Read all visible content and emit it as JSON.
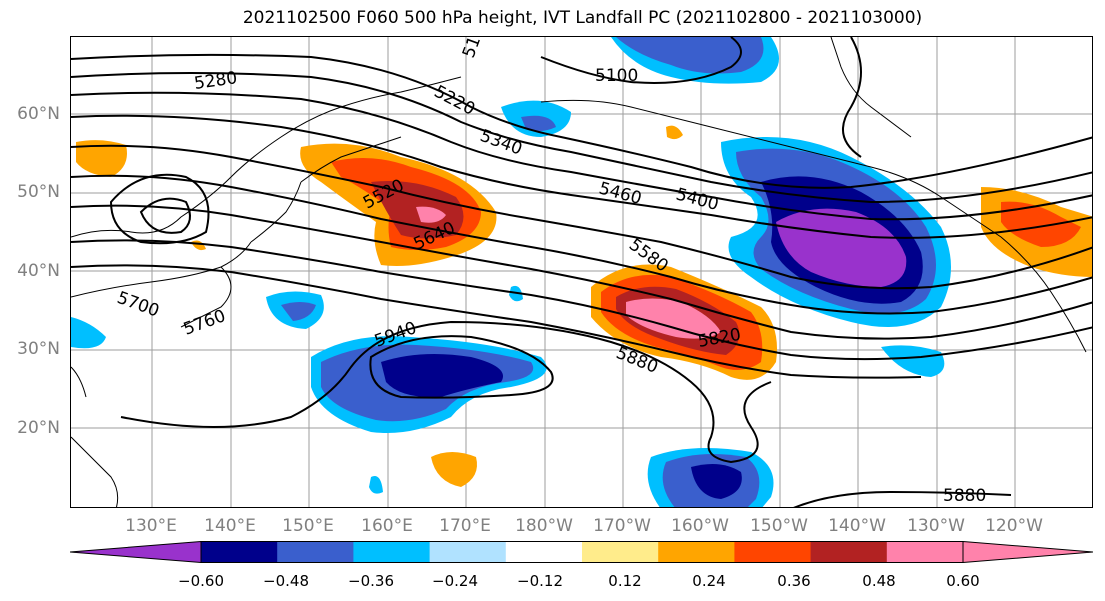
{
  "title": "2021102500 F060 500 hPa height, IVT Landfall PC (2021102800 - 2021103000)",
  "lat_labels": [
    "60°N",
    "50°N",
    "40°N",
    "30°N",
    "20°N"
  ],
  "lon_labels": [
    "130°E",
    "140°E",
    "150°E",
    "160°E",
    "170°E",
    "180°W",
    "170°W",
    "160°W",
    "150°W",
    "140°W",
    "130°W",
    "120°W"
  ],
  "contour_labels": [
    "5280",
    "5220",
    "5340",
    "5100",
    "5460",
    "5400",
    "5520",
    "5640",
    "5580",
    "5700",
    "5760",
    "5940",
    "5820",
    "5880",
    "5880",
    "51"
  ],
  "colorbar": {
    "ticks": [
      "−0.60",
      "−0.48",
      "−0.36",
      "−0.24",
      "−0.12",
      "0.12",
      "0.24",
      "0.36",
      "0.48",
      "0.60"
    ],
    "colors": [
      "#9932CC",
      "#00008B",
      "#3A5FCD",
      "#00BFFF",
      "#B0E2FF",
      "#FFFFFF",
      "#FFEC8B",
      "#FFA500",
      "#FF4500",
      "#B22222",
      "#FF82AB",
      "#FF82AB"
    ]
  }
}
